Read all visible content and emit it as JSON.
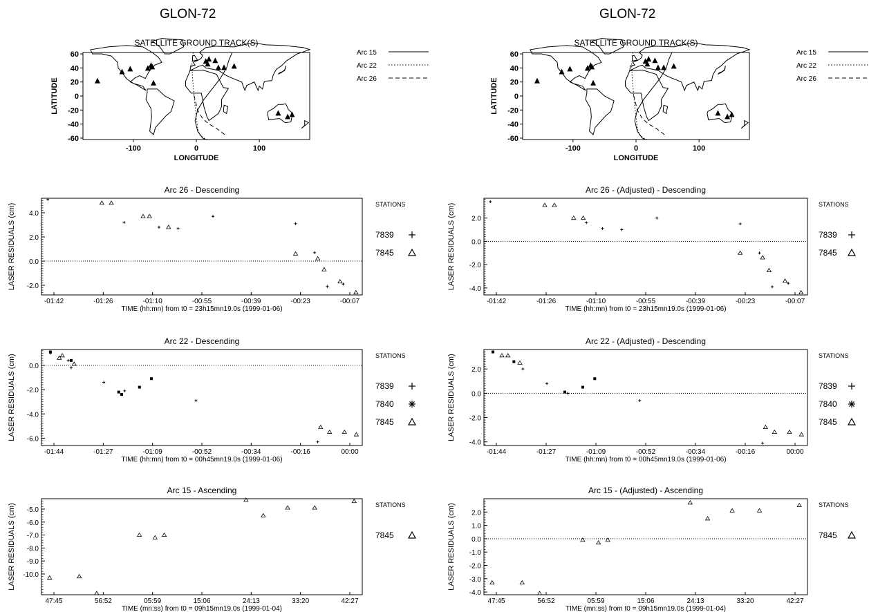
{
  "pages": [
    {
      "title": "GLON-72",
      "map": {
        "title": "SATELLITE GROUND TRACK(S)",
        "xlabel": "LONGITUDE",
        "ylabel": "LATITUDE",
        "xticks": [
          "-100",
          "0",
          "100"
        ],
        "yticks": [
          "60",
          "40",
          "20",
          "0",
          "-20",
          "-40",
          "-60"
        ],
        "legend": [
          {
            "label": "Arc 15",
            "style": "solid"
          },
          {
            "label": "Arc 22",
            "style": "dotted"
          },
          {
            "label": "Arc 26",
            "style": "dashed"
          }
        ]
      },
      "panels": [
        {
          "title": "Arc  26 - Descending",
          "xlabel": "TIME (hh:mn) from t0 = 23h15mn19.0s (1999-01-06)",
          "ylabel": "LASER RESIDUALS (cm)",
          "xticks": [
            "-01:42",
            "-01:26",
            "-01:10",
            "-00:55",
            "-00:39",
            "-00:23",
            "-00:07"
          ],
          "yticks": [
            "4.0",
            "2.0",
            "0.0",
            "-2.0"
          ],
          "legend_title": "STATIONS",
          "stations": [
            {
              "id": "7839",
              "symbol": "+"
            },
            {
              "id": "7845",
              "symbol": "Δ"
            }
          ]
        },
        {
          "title": "Arc  22 - Descending",
          "xlabel": "TIME (hh:mn) from t0 = 00h45mn19.0s (1999-01-06)",
          "ylabel": "LASER RESIDUALS (cm)",
          "xticks": [
            "-01:44",
            "-01:27",
            "-01:09",
            "-00:52",
            "-00:34",
            "-00:16",
            "00:00"
          ],
          "yticks": [
            "0.0",
            "-2.0",
            "-4.0",
            "-6.0"
          ],
          "legend_title": "STATIONS",
          "stations": [
            {
              "id": "7839",
              "symbol": "+"
            },
            {
              "id": "7840",
              "symbol": "✱"
            },
            {
              "id": "7845",
              "symbol": "Δ"
            }
          ]
        },
        {
          "title": "Arc  15 - Ascending",
          "xlabel": "TIME (mn:ss) from t0 = 09h15mn19.0s (1999-01-04)",
          "ylabel": "LASER RESIDUALS (cm)",
          "xticks": [
            "47:45",
            "56:52",
            "05:59",
            "15:06",
            "24:13",
            "33:20",
            "42:27"
          ],
          "yticks": [
            "-5.0",
            "-6.0",
            "-7.0",
            "-8.0",
            "-9.0",
            "-10.0"
          ],
          "legend_title": "STATIONS",
          "stations": [
            {
              "id": "7845",
              "symbol": "Δ"
            }
          ]
        }
      ]
    },
    {
      "title": "GLON-72",
      "map": {
        "title": "SATELLITE GROUND TRACK(S)",
        "xlabel": "LONGITUDE",
        "ylabel": "LATITUDE",
        "xticks": [
          "-100",
          "0",
          "100"
        ],
        "yticks": [
          "60",
          "40",
          "20",
          "0",
          "-20",
          "-40",
          "-60"
        ],
        "legend": [
          {
            "label": "Arc 15",
            "style": "solid"
          },
          {
            "label": "Arc 22",
            "style": "dotted"
          },
          {
            "label": "Arc 26",
            "style": "dashed"
          }
        ]
      },
      "panels": [
        {
          "title": "Arc  26 - (Adjusted) - Descending",
          "xlabel": "TIME (hh:mn) from t0 = 23h15mn19.0s (1999-01-06)",
          "ylabel": "LASER RESIDUALS (cm)",
          "xticks": [
            "-01:42",
            "-01:26",
            "-01:10",
            "-00:55",
            "-00:39",
            "-00:23",
            "-00:07"
          ],
          "yticks": [
            "2.0",
            "0.0",
            "-2.0",
            "-4.0"
          ],
          "legend_title": "STATIONS",
          "stations": [
            {
              "id": "7839",
              "symbol": "+"
            },
            {
              "id": "7845",
              "symbol": "Δ"
            }
          ]
        },
        {
          "title": "Arc  22 - (Adjusted) - Descending",
          "xlabel": "TIME (hh:mn) from t0 = 00h45mn19.0s (1999-01-06)",
          "ylabel": "LASER RESIDUALS (cm)",
          "xticks": [
            "-01:44",
            "-01:27",
            "-01:09",
            "-00:52",
            "-00:34",
            "-00:16",
            "00:00"
          ],
          "yticks": [
            "2.0",
            "0.0",
            "-2.0",
            "-4.0"
          ],
          "legend_title": "STATIONS",
          "stations": [
            {
              "id": "7839",
              "symbol": "+"
            },
            {
              "id": "7840",
              "symbol": "✱"
            },
            {
              "id": "7845",
              "symbol": "Δ"
            }
          ]
        },
        {
          "title": "Arc  15 - (Adjusted) - Ascending",
          "xlabel": "TIME (mn:ss) from t0 = 09h15mn19.0s (1999-01-04)",
          "ylabel": "LASER RESIDUALS (cm)",
          "xticks": [
            "47:45",
            "56:52",
            "05:59",
            "15:06",
            "24:13",
            "33:20",
            "42:27"
          ],
          "yticks": [
            "2.0",
            "1.0",
            "0.0",
            "-1.0",
            "-2.0",
            "-3.0",
            "-4.0"
          ],
          "legend_title": "STATIONS",
          "stations": [
            {
              "id": "7845",
              "symbol": "Δ"
            }
          ]
        }
      ]
    }
  ],
  "chart_data": [
    {
      "type": "scatter",
      "title": "Arc  26 - Descending",
      "xlabel": "TIME (hh:mn) from t0 = 23h15mn19.0s (1999-01-06)",
      "ylabel": "LASER RESIDUALS (cm)",
      "xlim": [
        -104,
        -3
      ],
      "ylim": [
        -2.8,
        5.2
      ],
      "zero_line": true,
      "series": [
        {
          "name": "7839",
          "x": [
            -102,
            -78,
            -67,
            -61,
            -50,
            -24,
            -18,
            -14,
            -9
          ],
          "y": [
            5.1,
            3.2,
            2.8,
            2.7,
            3.7,
            3.1,
            0.7,
            -2.1,
            -1.9
          ]
        },
        {
          "name": "7845",
          "x": [
            -85,
            -82,
            -72,
            -70,
            -64,
            -24,
            -17,
            -15,
            -10,
            -5
          ],
          "y": [
            4.8,
            4.8,
            3.7,
            3.7,
            2.8,
            0.6,
            0.2,
            -0.7,
            -1.7,
            -2.6
          ]
        }
      ]
    },
    {
      "type": "scatter",
      "title": "Arc  22 - Descending",
      "xlabel": "TIME (hh:mn) from t0 = 00h45mn19.0s (1999-01-06)",
      "ylabel": "LASER RESIDUALS (cm)",
      "xlim": [
        -106,
        2
      ],
      "ylim": [
        -6.6,
        1.3
      ],
      "zero_line": true,
      "series": [
        {
          "name": "7839",
          "x": [
            -103,
            -97,
            -96,
            -85,
            -78,
            -54,
            -13
          ],
          "y": [
            1.0,
            0.4,
            -0.2,
            -1.4,
            -2.1,
            -2.9,
            -6.3
          ]
        },
        {
          "name": "7840",
          "x": [
            -103,
            -96,
            -80,
            -79,
            -73,
            -69
          ],
          "y": [
            1.1,
            0.4,
            -2.2,
            -2.4,
            -1.8,
            -1.1
          ]
        },
        {
          "name": "7845",
          "x": [
            -100,
            -99,
            -95,
            -12,
            -9,
            -4,
            0
          ],
          "y": [
            0.6,
            0.8,
            0.1,
            -5.1,
            -5.5,
            -5.5,
            -5.7
          ]
        }
      ]
    },
    {
      "type": "scatter",
      "title": "Arc  15 - Ascending",
      "xlabel": "TIME (mn:ss) from t0 = 09h15mn19.0s (1999-01-04)",
      "ylabel": "LASER RESIDUALS (cm)",
      "xlim": [
        -1.5,
        57.8
      ],
      "ylim": [
        -11.6,
        -4.2
      ],
      "series": [
        {
          "name": "7845",
          "x": [
            0,
            5.5,
            8.7,
            16.6,
            19.5,
            21.2,
            36.3,
            39.5,
            44.0,
            49.0,
            56.3
          ],
          "y": [
            -10.3,
            -10.2,
            -11.5,
            -7.0,
            -7.2,
            -7.0,
            -4.3,
            -5.5,
            -4.9,
            -4.9,
            -4.4
          ]
        }
      ]
    },
    {
      "type": "scatter",
      "title": "Arc  26 - (Adjusted) - Descending",
      "xlabel": "TIME (hh:mn) from t0 = 23h15mn19.0s (1999-01-06)",
      "ylabel": "LASER RESIDUALS (cm)",
      "xlim": [
        -104,
        -3
      ],
      "ylim": [
        -4.6,
        3.7
      ],
      "zero_line": true,
      "series": [
        {
          "name": "7839",
          "x": [
            -102,
            -72,
            -67,
            -61,
            -50,
            -24,
            -18,
            -14,
            -9
          ],
          "y": [
            3.4,
            1.6,
            1.1,
            1.0,
            2.0,
            1.5,
            -1.0,
            -3.9,
            -3.6
          ]
        },
        {
          "name": "7845",
          "x": [
            -85,
            -82,
            -76,
            -73,
            -24,
            -17,
            -15,
            -10,
            -5
          ],
          "y": [
            3.1,
            3.1,
            2.0,
            2.0,
            -1.0,
            -1.4,
            -2.5,
            -3.4,
            -4.4
          ]
        }
      ]
    },
    {
      "type": "scatter",
      "title": "Arc  22 - (Adjusted) - Descending",
      "xlabel": "TIME (hh:mn) from t0 = 00h45mn19.0s (1999-01-06)",
      "ylabel": "LASER RESIDUALS (cm)",
      "xlim": [
        -106,
        2
      ],
      "ylim": [
        -4.3,
        3.6
      ],
      "zero_line": true,
      "series": [
        {
          "name": "7839",
          "x": [
            -93,
            -85,
            -78,
            -54,
            -13
          ],
          "y": [
            2.0,
            0.8,
            0.0,
            -0.6,
            -4.1
          ]
        },
        {
          "name": "7840",
          "x": [
            -103,
            -96,
            -79,
            -73,
            -69
          ],
          "y": [
            3.4,
            2.6,
            0.1,
            0.5,
            1.2
          ]
        },
        {
          "name": "7845",
          "x": [
            -100,
            -98,
            -94,
            -12,
            -9,
            -4,
            0
          ],
          "y": [
            3.1,
            3.1,
            2.5,
            -2.8,
            -3.2,
            -3.2,
            -3.4
          ]
        }
      ]
    },
    {
      "type": "scatter",
      "title": "Arc  15 - (Adjusted) - Ascending",
      "xlabel": "TIME (mn:ss) from t0 = 09h15mn19.0s (1999-01-04)",
      "ylabel": "LASER RESIDUALS (cm)",
      "xlim": [
        -1.5,
        57.8
      ],
      "ylim": [
        -4.2,
        3.0
      ],
      "zero_line": true,
      "series": [
        {
          "name": "7845",
          "x": [
            0,
            5.5,
            8.7,
            16.6,
            19.5,
            21.2,
            36.3,
            39.5,
            44.0,
            49.0,
            56.3
          ],
          "y": [
            -3.3,
            -3.3,
            -4.1,
            -0.1,
            -0.3,
            -0.1,
            2.7,
            1.5,
            2.1,
            2.1,
            2.5
          ]
        }
      ]
    }
  ],
  "ground_tracks": [
    {
      "name": "Arc 15",
      "style": "solid",
      "lon": [
        15,
        10,
        2,
        -2,
        2,
        12,
        25,
        38,
        48,
        52,
        55,
        57
      ],
      "lat": [
        -62,
        -60,
        -50,
        -35,
        -20,
        -5,
        10,
        25,
        40,
        52,
        58,
        62
      ]
    },
    {
      "name": "Arc 22",
      "style": "dotted",
      "lon": [
        -5,
        -7,
        -6,
        -4,
        -2,
        0,
        2,
        5,
        12,
        18,
        22
      ],
      "lat": [
        62,
        45,
        25,
        5,
        -15,
        -30,
        -45,
        -55,
        -60,
        -62,
        -62
      ]
    },
    {
      "name": "Arc 26",
      "style": "dashed",
      "lon": [
        45,
        38,
        30,
        20,
        10,
        2,
        -2,
        -5
      ],
      "lat": [
        -55,
        -50,
        -45,
        -40,
        -32,
        -20,
        -5,
        5
      ]
    }
  ]
}
